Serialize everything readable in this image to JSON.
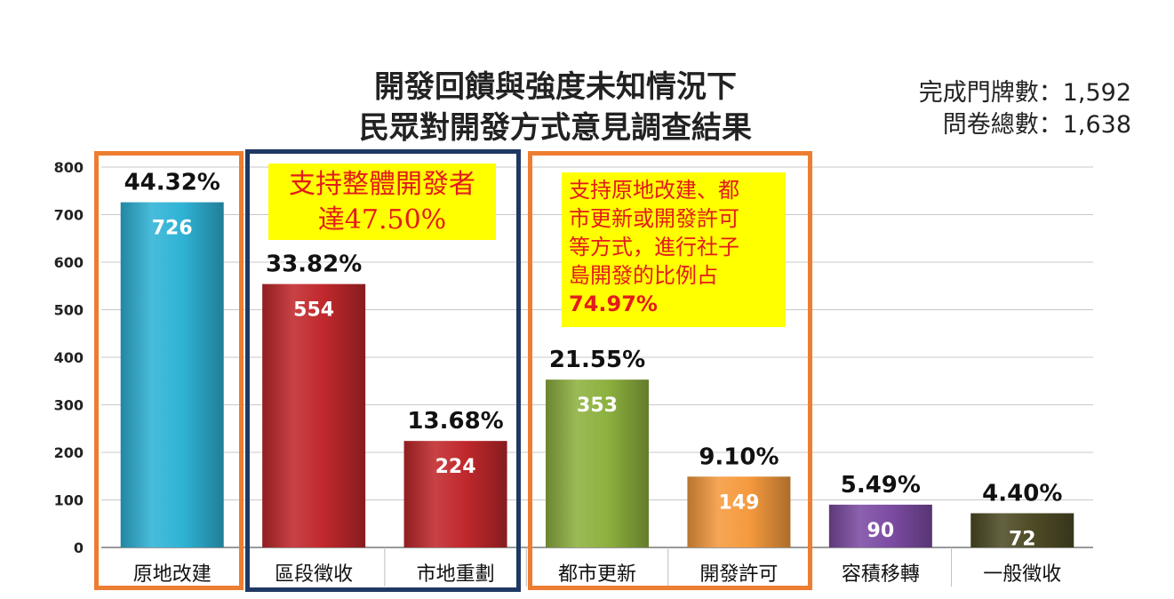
{
  "header": {
    "title_line1": "開發回饋與強度未知情況下",
    "title_line2": "民眾對開發方式意見調查結果",
    "stat_doors": "完成門牌數：1,592",
    "stat_questionnaires": "問卷總數：1,638"
  },
  "callouts": {
    "group2_line1": "支持整體開發者",
    "group2_line2": "達47.50%",
    "group3_lines": [
      "支持原地改建、都",
      "市更新或開發許可",
      "等方式，進行社子",
      "島開發的比例占"
    ],
    "group3_value": "74.97%"
  },
  "colors": {
    "group_box_orange": "#ed7d31",
    "group_box_navy": "#1f3864",
    "callout_bg": "#ffff00",
    "callout_text": "#e31b1b"
  },
  "chart_data": {
    "type": "bar",
    "ylim": [
      0,
      800
    ],
    "yticks": [
      0,
      100,
      200,
      300,
      400,
      500,
      600,
      700,
      800
    ],
    "grid": true,
    "categories": [
      "原地改建",
      "區段徵收",
      "市地重劃",
      "都市更新",
      "開發許可",
      "容積移轉",
      "一般徵收"
    ],
    "values": [
      726,
      554,
      224,
      353,
      149,
      90,
      72
    ],
    "value_labels": [
      "726",
      "554",
      "224",
      "353",
      "149",
      "90",
      "72"
    ],
    "percent_labels": [
      "44.32%",
      "33.82%",
      "13.68%",
      "21.55%",
      "9.10%",
      "5.49%",
      "4.40%"
    ],
    "bar_colors": [
      "#2fb3d6",
      "#c0282c",
      "#c0282c",
      "#8db13f",
      "#f59a3e",
      "#7c4ca3",
      "#4e4b26"
    ]
  }
}
